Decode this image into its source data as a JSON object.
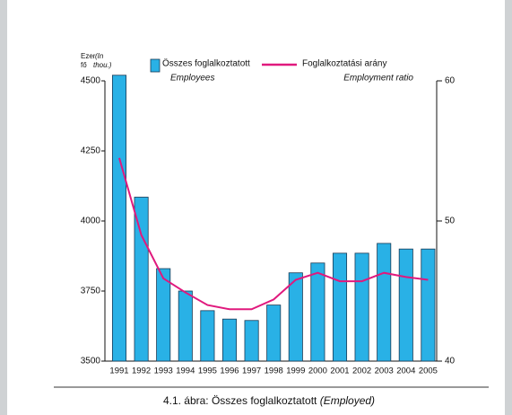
{
  "chart_data": {
    "type": "bar_line",
    "caption": "4.1. ábra: Összes foglalkoztatott",
    "caption_en": "(Employed)",
    "ylabel_lines": [
      "Ezer",
      "fő"
    ],
    "ylabel_en_lines": [
      "(In",
      "thou.)"
    ],
    "categories": [
      "1991",
      "1992",
      "1993",
      "1994",
      "1995",
      "1996",
      "1997",
      "1998",
      "1999",
      "2000",
      "2001",
      "2002",
      "2003",
      "2004",
      "2005"
    ],
    "series": [
      {
        "name": "Összes foglalkoztatott",
        "name_en": "Employees",
        "type": "bar",
        "axis": "y",
        "color": "#29b1e6",
        "values": [
          4520,
          4085,
          3830,
          3750,
          3680,
          3650,
          3645,
          3700,
          3815,
          3850,
          3885,
          3885,
          3920,
          3900,
          3900
        ]
      },
      {
        "name": "Foglalkoztatási arány",
        "name_en": "Employment ratio",
        "type": "line",
        "axis": "y2",
        "color": "#e0197d",
        "values": [
          54.5,
          49.0,
          45.9,
          44.9,
          44.0,
          43.7,
          43.7,
          44.4,
          45.8,
          46.3,
          45.7,
          45.7,
          46.3,
          46.0,
          45.8
        ]
      }
    ],
    "ylim": [
      3500,
      4500
    ],
    "yticks": [
      3500,
      3750,
      4000,
      4250,
      4500
    ],
    "y2lim": [
      40,
      60
    ],
    "y2ticks": [
      40,
      50,
      60
    ]
  }
}
